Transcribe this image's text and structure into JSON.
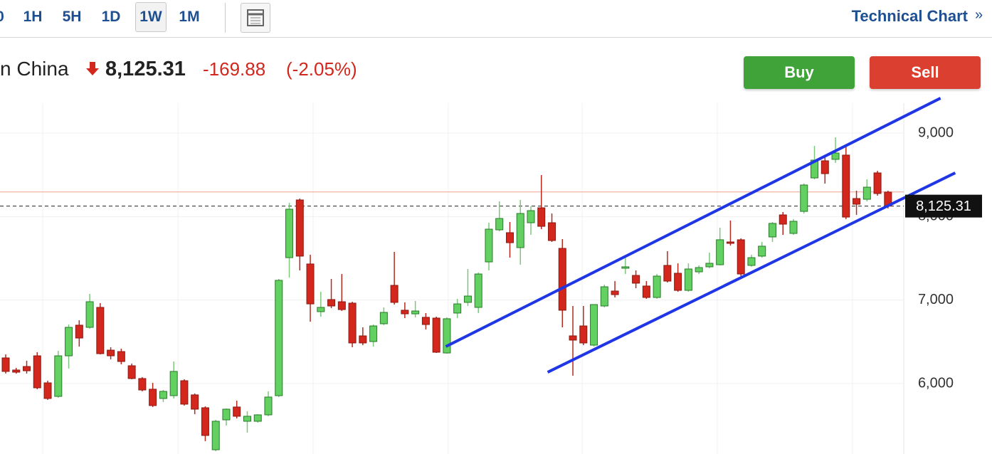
{
  "toolbar": {
    "timeframes": [
      "0",
      "1H",
      "5H",
      "1D",
      "1W",
      "1M"
    ],
    "active": "1W",
    "link": "Technical Chart",
    "link_icon": "»"
  },
  "quote": {
    "name": "n China",
    "price": "8,125.31",
    "change": "-169.88",
    "change_pct": "(-2.05%)"
  },
  "buttons": {
    "buy": "Buy",
    "sell": "Sell"
  },
  "chart_data": {
    "type": "candlestick",
    "up_color": "#62d162",
    "down_color": "#d3261c",
    "grid": true,
    "ylim": [
      5156,
      9358
    ],
    "yticks": [
      {
        "value": 6000,
        "label": "6,000"
      },
      {
        "value": 7000,
        "label": "7,000"
      },
      {
        "value": 8000,
        "label": "8,000"
      },
      {
        "value": 9000,
        "label": "9,000"
      }
    ],
    "last": {
      "value": 8125.31,
      "label": "8,125.31"
    },
    "reference_line": 8295.19,
    "trendlines": [
      {
        "x": [
          41.9,
          89.0
        ],
        "values": [
          6443,
          9418
        ],
        "color": "#1f36e6"
      },
      {
        "x": [
          51.6,
          90.4
        ],
        "values": [
          6136,
          8523
        ],
        "color": "#1f36e6"
      }
    ],
    "candles": [
      {
        "o": 6307,
        "h": 6349,
        "l": 6119,
        "c": 6145
      },
      {
        "o": 6162,
        "h": 6187,
        "l": 6119,
        "c": 6136
      },
      {
        "o": 6204,
        "h": 6273,
        "l": 6119,
        "c": 6153
      },
      {
        "o": 6332,
        "h": 6375,
        "l": 5932,
        "c": 5949
      },
      {
        "o": 6008,
        "h": 6034,
        "l": 5804,
        "c": 5821
      },
      {
        "o": 5846,
        "h": 6392,
        "l": 5829,
        "c": 6332
      },
      {
        "o": 6332,
        "h": 6707,
        "l": 6179,
        "c": 6673
      },
      {
        "o": 6699,
        "h": 6758,
        "l": 6443,
        "c": 6545
      },
      {
        "o": 6673,
        "h": 7074,
        "l": 6656,
        "c": 6980
      },
      {
        "o": 6912,
        "h": 6963,
        "l": 6349,
        "c": 6358
      },
      {
        "o": 6400,
        "h": 6435,
        "l": 6290,
        "c": 6332
      },
      {
        "o": 6383,
        "h": 6418,
        "l": 6230,
        "c": 6264
      },
      {
        "o": 6213,
        "h": 6239,
        "l": 6051,
        "c": 6060
      },
      {
        "o": 6060,
        "h": 6077,
        "l": 5906,
        "c": 5923
      },
      {
        "o": 5932,
        "h": 6008,
        "l": 5719,
        "c": 5736
      },
      {
        "o": 5821,
        "h": 5923,
        "l": 5778,
        "c": 5906
      },
      {
        "o": 5855,
        "h": 6264,
        "l": 5821,
        "c": 6145
      },
      {
        "o": 6034,
        "h": 6051,
        "l": 5736,
        "c": 5753
      },
      {
        "o": 5864,
        "h": 5881,
        "l": 5633,
        "c": 5693
      },
      {
        "o": 5710,
        "h": 5727,
        "l": 5310,
        "c": 5378
      },
      {
        "o": 5207,
        "h": 5565,
        "l": 5190,
        "c": 5548
      },
      {
        "o": 5565,
        "h": 5702,
        "l": 5497,
        "c": 5693
      },
      {
        "o": 5719,
        "h": 5795,
        "l": 5582,
        "c": 5608
      },
      {
        "o": 5548,
        "h": 5668,
        "l": 5412,
        "c": 5608
      },
      {
        "o": 5548,
        "h": 5633,
        "l": 5531,
        "c": 5625
      },
      {
        "o": 5625,
        "h": 5906,
        "l": 5608,
        "c": 5838
      },
      {
        "o": 5855,
        "h": 7253,
        "l": 5838,
        "c": 7236
      },
      {
        "o": 7508,
        "h": 8165,
        "l": 7270,
        "c": 8088
      },
      {
        "o": 8199,
        "h": 8216,
        "l": 7355,
        "c": 7526
      },
      {
        "o": 7432,
        "h": 7543,
        "l": 6741,
        "c": 6954
      },
      {
        "o": 6861,
        "h": 7099,
        "l": 6801,
        "c": 6912
      },
      {
        "o": 7006,
        "h": 7253,
        "l": 6903,
        "c": 6929
      },
      {
        "o": 6980,
        "h": 7312,
        "l": 6869,
        "c": 6886
      },
      {
        "o": 6963,
        "h": 6980,
        "l": 6435,
        "c": 6486
      },
      {
        "o": 6571,
        "h": 6673,
        "l": 6460,
        "c": 6486
      },
      {
        "o": 6503,
        "h": 6707,
        "l": 6443,
        "c": 6690
      },
      {
        "o": 6716,
        "h": 6912,
        "l": 6699,
        "c": 6852
      },
      {
        "o": 7176,
        "h": 7577,
        "l": 6946,
        "c": 6972
      },
      {
        "o": 6878,
        "h": 6972,
        "l": 6784,
        "c": 6835
      },
      {
        "o": 6835,
        "h": 6989,
        "l": 6793,
        "c": 6869
      },
      {
        "o": 6793,
        "h": 6844,
        "l": 6648,
        "c": 6707
      },
      {
        "o": 6784,
        "h": 6801,
        "l": 6366,
        "c": 6375
      },
      {
        "o": 6366,
        "h": 6793,
        "l": 6358,
        "c": 6776
      },
      {
        "o": 6844,
        "h": 7014,
        "l": 6784,
        "c": 6954
      },
      {
        "o": 6972,
        "h": 7372,
        "l": 6929,
        "c": 7048
      },
      {
        "o": 6912,
        "h": 7330,
        "l": 6844,
        "c": 7312
      },
      {
        "o": 7457,
        "h": 7926,
        "l": 7355,
        "c": 7849
      },
      {
        "o": 7841,
        "h": 8182,
        "l": 7824,
        "c": 7977
      },
      {
        "o": 7807,
        "h": 7935,
        "l": 7508,
        "c": 7687
      },
      {
        "o": 7628,
        "h": 8199,
        "l": 7423,
        "c": 8037
      },
      {
        "o": 7926,
        "h": 8122,
        "l": 7781,
        "c": 8071
      },
      {
        "o": 8105,
        "h": 8497,
        "l": 7849,
        "c": 7883
      },
      {
        "o": 7926,
        "h": 8037,
        "l": 7696,
        "c": 7713
      },
      {
        "o": 7619,
        "h": 7730,
        "l": 6673,
        "c": 6878
      },
      {
        "o": 6571,
        "h": 6929,
        "l": 6094,
        "c": 6520
      },
      {
        "o": 6690,
        "h": 6929,
        "l": 6460,
        "c": 6486
      },
      {
        "o": 6460,
        "h": 6946,
        "l": 6443,
        "c": 6946
      },
      {
        "o": 6929,
        "h": 7185,
        "l": 6912,
        "c": 7159
      },
      {
        "o": 7108,
        "h": 7227,
        "l": 7031,
        "c": 7065
      },
      {
        "o": 7381,
        "h": 7526,
        "l": 7312,
        "c": 7398
      },
      {
        "o": 7295,
        "h": 7355,
        "l": 7142,
        "c": 7202
      },
      {
        "o": 7168,
        "h": 7227,
        "l": 7014,
        "c": 7031
      },
      {
        "o": 7031,
        "h": 7312,
        "l": 7014,
        "c": 7287
      },
      {
        "o": 7415,
        "h": 7585,
        "l": 7210,
        "c": 7227
      },
      {
        "o": 7321,
        "h": 7440,
        "l": 7099,
        "c": 7116
      },
      {
        "o": 7116,
        "h": 7440,
        "l": 7099,
        "c": 7372
      },
      {
        "o": 7338,
        "h": 7415,
        "l": 7312,
        "c": 7389
      },
      {
        "o": 7398,
        "h": 7568,
        "l": 7381,
        "c": 7440
      },
      {
        "o": 7423,
        "h": 7866,
        "l": 7415,
        "c": 7722
      },
      {
        "o": 7696,
        "h": 7952,
        "l": 7653,
        "c": 7679
      },
      {
        "o": 7722,
        "h": 7739,
        "l": 7287,
        "c": 7312
      },
      {
        "o": 7415,
        "h": 7543,
        "l": 7398,
        "c": 7508
      },
      {
        "o": 7526,
        "h": 7696,
        "l": 7508,
        "c": 7645
      },
      {
        "o": 7756,
        "h": 7935,
        "l": 7696,
        "c": 7918
      },
      {
        "o": 8020,
        "h": 8054,
        "l": 7781,
        "c": 7909
      },
      {
        "o": 7798,
        "h": 7969,
        "l": 7781,
        "c": 7943
      },
      {
        "o": 8062,
        "h": 8395,
        "l": 8037,
        "c": 8378
      },
      {
        "o": 8463,
        "h": 8847,
        "l": 8446,
        "c": 8676
      },
      {
        "o": 8668,
        "h": 8736,
        "l": 8395,
        "c": 8514
      },
      {
        "o": 8685,
        "h": 8949,
        "l": 8642,
        "c": 8761
      },
      {
        "o": 8736,
        "h": 8847,
        "l": 7969,
        "c": 7994
      },
      {
        "o": 8216,
        "h": 8310,
        "l": 8020,
        "c": 8148
      },
      {
        "o": 8207,
        "h": 8446,
        "l": 8182,
        "c": 8352
      },
      {
        "o": 8523,
        "h": 8548,
        "l": 8250,
        "c": 8276
      },
      {
        "o": 8293,
        "h": 8310,
        "l": 8097,
        "c": 8125.31
      }
    ]
  }
}
